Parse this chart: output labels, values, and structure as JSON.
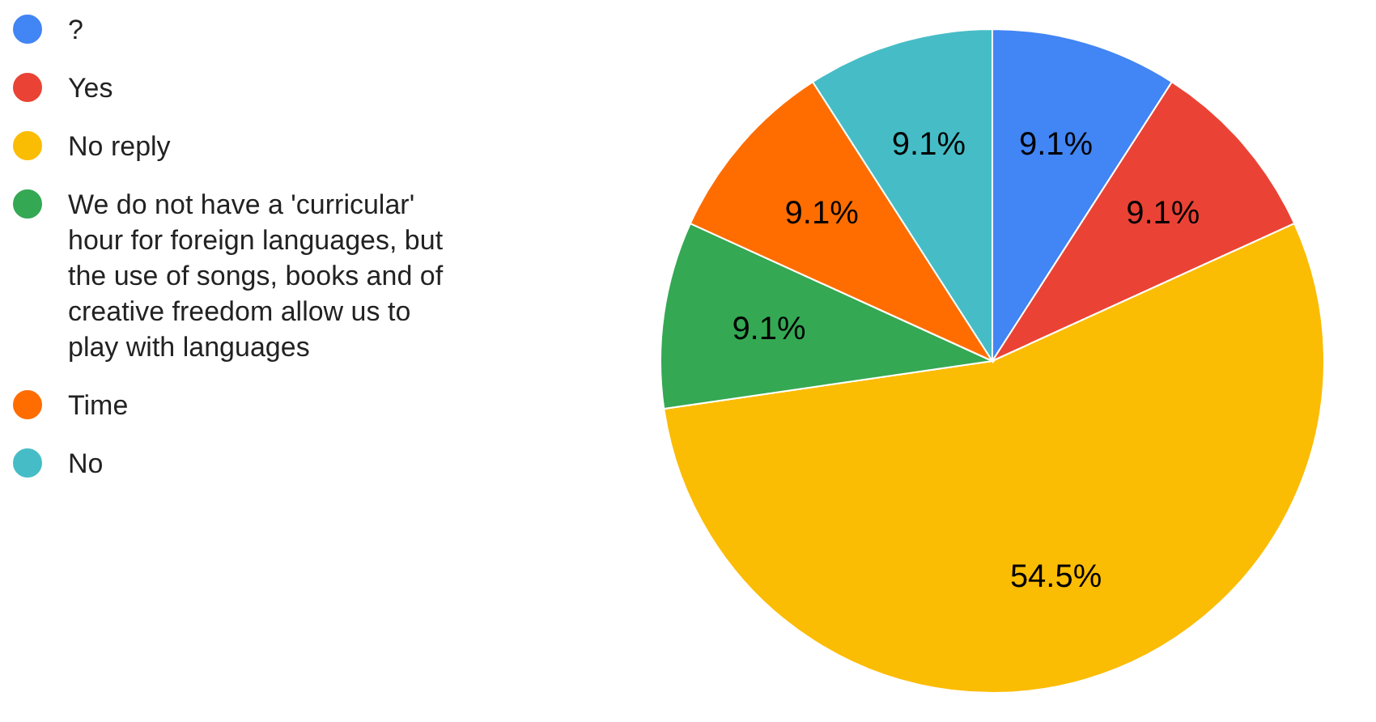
{
  "chart_data": {
    "type": "pie",
    "categories": [
      "?",
      "Yes",
      "No reply",
      "We do not have a 'curricular' hour for foreign languages, but the use of songs, books and of creative freedom allow us to play with languages",
      "Time",
      "No"
    ],
    "values": [
      9.1,
      9.1,
      54.5,
      9.1,
      9.1,
      9.1
    ],
    "colors": [
      "#4285f4",
      "#ea4335",
      "#fbbc04",
      "#34a853",
      "#ff6d01",
      "#46bdc6"
    ],
    "value_labels": [
      "9.1%",
      "9.1%",
      "54.5%",
      "9.1%",
      "9.1%",
      "9.1%"
    ],
    "legend": "left"
  }
}
